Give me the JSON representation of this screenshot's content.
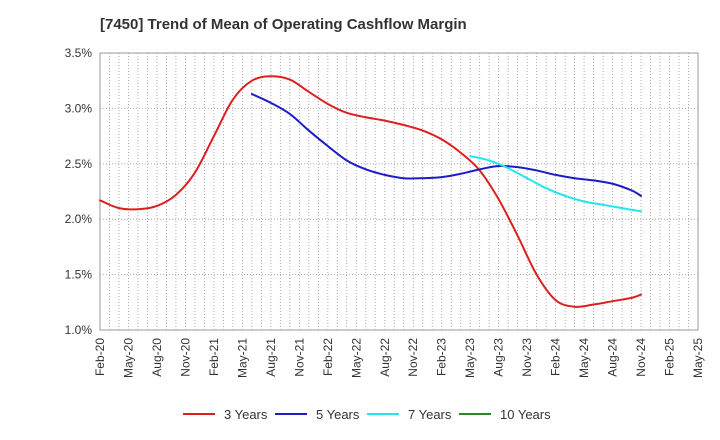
{
  "chart_data": {
    "type": "line",
    "title": "[7450]  Trend of Mean of Operating Cashflow Margin",
    "xlabel": "",
    "ylabel": "",
    "ylim": [
      1.0,
      3.5
    ],
    "yticks": [
      "1.0%",
      "1.5%",
      "2.0%",
      "2.5%",
      "3.0%",
      "3.5%"
    ],
    "ytick_values": [
      1.0,
      1.5,
      2.0,
      2.5,
      3.0,
      3.5
    ],
    "x_labels": [
      "Feb-20",
      "May-20",
      "Aug-20",
      "Nov-20",
      "Feb-21",
      "May-21",
      "Aug-21",
      "Nov-21",
      "Feb-22",
      "May-22",
      "Aug-22",
      "Nov-22",
      "Feb-23",
      "May-23",
      "Aug-23",
      "Nov-23",
      "Feb-24",
      "May-24",
      "Aug-24",
      "Nov-24",
      "Feb-25",
      "May-25"
    ],
    "x_month_span": [
      0,
      63
    ],
    "grid": true,
    "legend_position": "bottom",
    "series": [
      {
        "name": "3 Years",
        "color": "#dd1f1f",
        "points": [
          [
            0,
            2.17
          ],
          [
            2,
            2.1
          ],
          [
            4,
            2.09
          ],
          [
            6,
            2.12
          ],
          [
            8,
            2.22
          ],
          [
            10,
            2.42
          ],
          [
            12,
            2.75
          ],
          [
            14,
            3.08
          ],
          [
            16,
            3.25
          ],
          [
            18,
            3.29
          ],
          [
            20,
            3.26
          ],
          [
            22,
            3.15
          ],
          [
            24,
            3.04
          ],
          [
            26,
            2.96
          ],
          [
            28,
            2.92
          ],
          [
            30,
            2.89
          ],
          [
            32,
            2.85
          ],
          [
            34,
            2.8
          ],
          [
            36,
            2.72
          ],
          [
            38,
            2.6
          ],
          [
            40,
            2.44
          ],
          [
            42,
            2.18
          ],
          [
            44,
            1.85
          ],
          [
            46,
            1.5
          ],
          [
            48,
            1.27
          ],
          [
            50,
            1.21
          ],
          [
            52,
            1.23
          ],
          [
            54,
            1.26
          ],
          [
            56,
            1.29
          ],
          [
            57,
            1.32
          ]
        ]
      },
      {
        "name": "5 Years",
        "color": "#1c1cc8",
        "points": [
          [
            16,
            3.13
          ],
          [
            18,
            3.05
          ],
          [
            20,
            2.95
          ],
          [
            22,
            2.8
          ],
          [
            24,
            2.66
          ],
          [
            26,
            2.53
          ],
          [
            28,
            2.45
          ],
          [
            30,
            2.4
          ],
          [
            32,
            2.37
          ],
          [
            34,
            2.37
          ],
          [
            36,
            2.38
          ],
          [
            38,
            2.41
          ],
          [
            40,
            2.45
          ],
          [
            42,
            2.48
          ],
          [
            44,
            2.47
          ],
          [
            46,
            2.44
          ],
          [
            48,
            2.4
          ],
          [
            50,
            2.37
          ],
          [
            52,
            2.35
          ],
          [
            54,
            2.32
          ],
          [
            56,
            2.26
          ],
          [
            57,
            2.21
          ]
        ]
      },
      {
        "name": "7 Years",
        "color": "#22e6ee",
        "points": [
          [
            39,
            2.57
          ],
          [
            41,
            2.53
          ],
          [
            43,
            2.46
          ],
          [
            45,
            2.37
          ],
          [
            47,
            2.28
          ],
          [
            49,
            2.21
          ],
          [
            51,
            2.16
          ],
          [
            53,
            2.13
          ],
          [
            55,
            2.1
          ],
          [
            57,
            2.07
          ]
        ]
      },
      {
        "name": "10 Years",
        "color": "#2a8a2a",
        "points": []
      }
    ]
  }
}
